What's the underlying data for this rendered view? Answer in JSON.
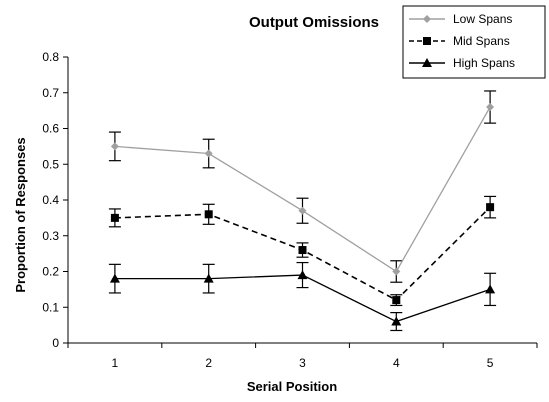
{
  "chart_data": {
    "type": "line",
    "title": "Output Omissions",
    "xlabel": "Serial Position",
    "ylabel": "Proportion of Responses",
    "categories": [
      "1",
      "2",
      "3",
      "4",
      "5"
    ],
    "ylim": [
      0,
      0.8
    ],
    "yticks": [
      "0",
      "0.1",
      "0.2",
      "0.3",
      "0.4",
      "0.5",
      "0.6",
      "0.7",
      "0.8"
    ],
    "grid": false,
    "legend_position": "top-right",
    "series": [
      {
        "name": "Low Spans",
        "values": [
          0.55,
          0.53,
          0.37,
          0.2,
          0.66
        ],
        "errors": [
          0.04,
          0.04,
          0.035,
          0.03,
          0.045
        ],
        "color": "#a0a0a0",
        "marker": "diamond",
        "line_style": "solid"
      },
      {
        "name": "Mid Spans",
        "values": [
          0.35,
          0.36,
          0.26,
          0.12,
          0.38
        ],
        "errors": [
          0.025,
          0.028,
          0.02,
          0.015,
          0.03
        ],
        "color": "#000000",
        "marker": "square",
        "line_style": "dashed"
      },
      {
        "name": "High Spans",
        "values": [
          0.18,
          0.18,
          0.19,
          0.06,
          0.15
        ],
        "errors": [
          0.04,
          0.04,
          0.035,
          0.025,
          0.045
        ],
        "color": "#000000",
        "marker": "triangle",
        "line_style": "solid"
      }
    ]
  }
}
